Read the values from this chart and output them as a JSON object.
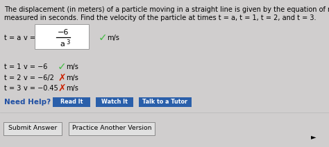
{
  "bg_color": "#d0cece",
  "title_line1": "The displacement (in meters) of a particle moving in a straight line is given by the equation of motion",
  "title_line2": "measured in seconds. Find the velocity of the particle at times t = a, t = 1, t = 2, and t = 3.",
  "need_help_color": "#1f4fa3",
  "button_color": "#2a5faa",
  "button_labels": [
    "Read It",
    "Watch It",
    "Talk to a Tutor"
  ],
  "bottom_buttons": [
    "Submit Answer",
    "Practice Another Version"
  ],
  "check_color": "#44bb44",
  "x_color": "#cc2200",
  "row0_label": "t = a",
  "row0_v": "v =",
  "row0_num": "−6",
  "row0_den": "a",
  "row1_label": "t = 1",
  "row1_val": "v = −6",
  "row2_label": "t = 2",
  "row2_val": "v = −6/2",
  "row3_label": "t = 3",
  "row3_val": "v = −0.45"
}
